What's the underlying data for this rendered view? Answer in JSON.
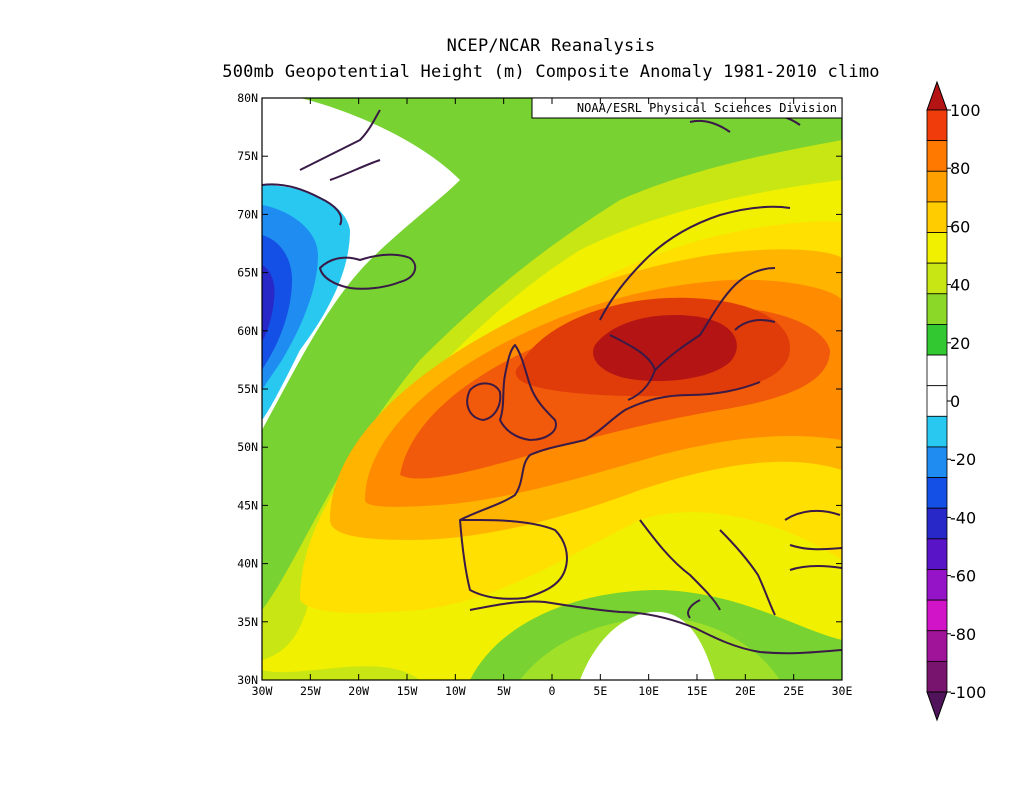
{
  "header": {
    "title_line1": "NCEP/NCAR Reanalysis",
    "title_line2": "500mb Geopotential Height (m) Composite Anomaly 1981-2010 climo"
  },
  "map": {
    "credit": "NOAA/ESRL Physical Sciences Division",
    "projection": "equirectangular",
    "lon_range": [
      -30,
      30
    ],
    "lat_range": [
      30,
      80
    ],
    "x_tick_labels": [
      "30W",
      "25W",
      "20W",
      "15W",
      "10W",
      "5W",
      "0",
      "5E",
      "10E",
      "15E",
      "20E",
      "25E",
      "30E"
    ],
    "y_tick_labels": [
      "30N",
      "35N",
      "40N",
      "45N",
      "50N",
      "55N",
      "60N",
      "65N",
      "70N",
      "75N",
      "80N"
    ],
    "anomaly_fields": [
      {
        "level": 0,
        "color": "#ffffff"
      },
      {
        "level": 10,
        "color": "#90dc32"
      },
      {
        "level": 20,
        "color": "#c8e614"
      },
      {
        "level": 30,
        "color": "#f0f000"
      },
      {
        "level": 40,
        "color": "#ffe800"
      },
      {
        "level": 50,
        "color": "#ffc800"
      },
      {
        "level": 60,
        "color": "#ffa000"
      },
      {
        "level": 70,
        "color": "#ff7a00"
      },
      {
        "level": 80,
        "color": "#f0440a"
      },
      {
        "level": 90,
        "color": "#c01010"
      }
    ],
    "coast_color": "#3a1a46"
  },
  "colorbar": {
    "labels": [
      "100",
      "80",
      "60",
      "40",
      "20",
      "0",
      "-20",
      "-40",
      "-60",
      "-80",
      "-100"
    ],
    "colors": [
      "#b41414",
      "#f03c0a",
      "#ff7800",
      "#ffa000",
      "#ffcc00",
      "#f0f000",
      "#c8e614",
      "#8cd828",
      "#32c832",
      "#ffffff",
      "#ffffff",
      "#28c8f0",
      "#1e8cf0",
      "#1450e6",
      "#2828c8",
      "#5a14c8",
      "#9614c8",
      "#d214c8",
      "#a0149a",
      "#78146e",
      "#50145a"
    ]
  }
}
